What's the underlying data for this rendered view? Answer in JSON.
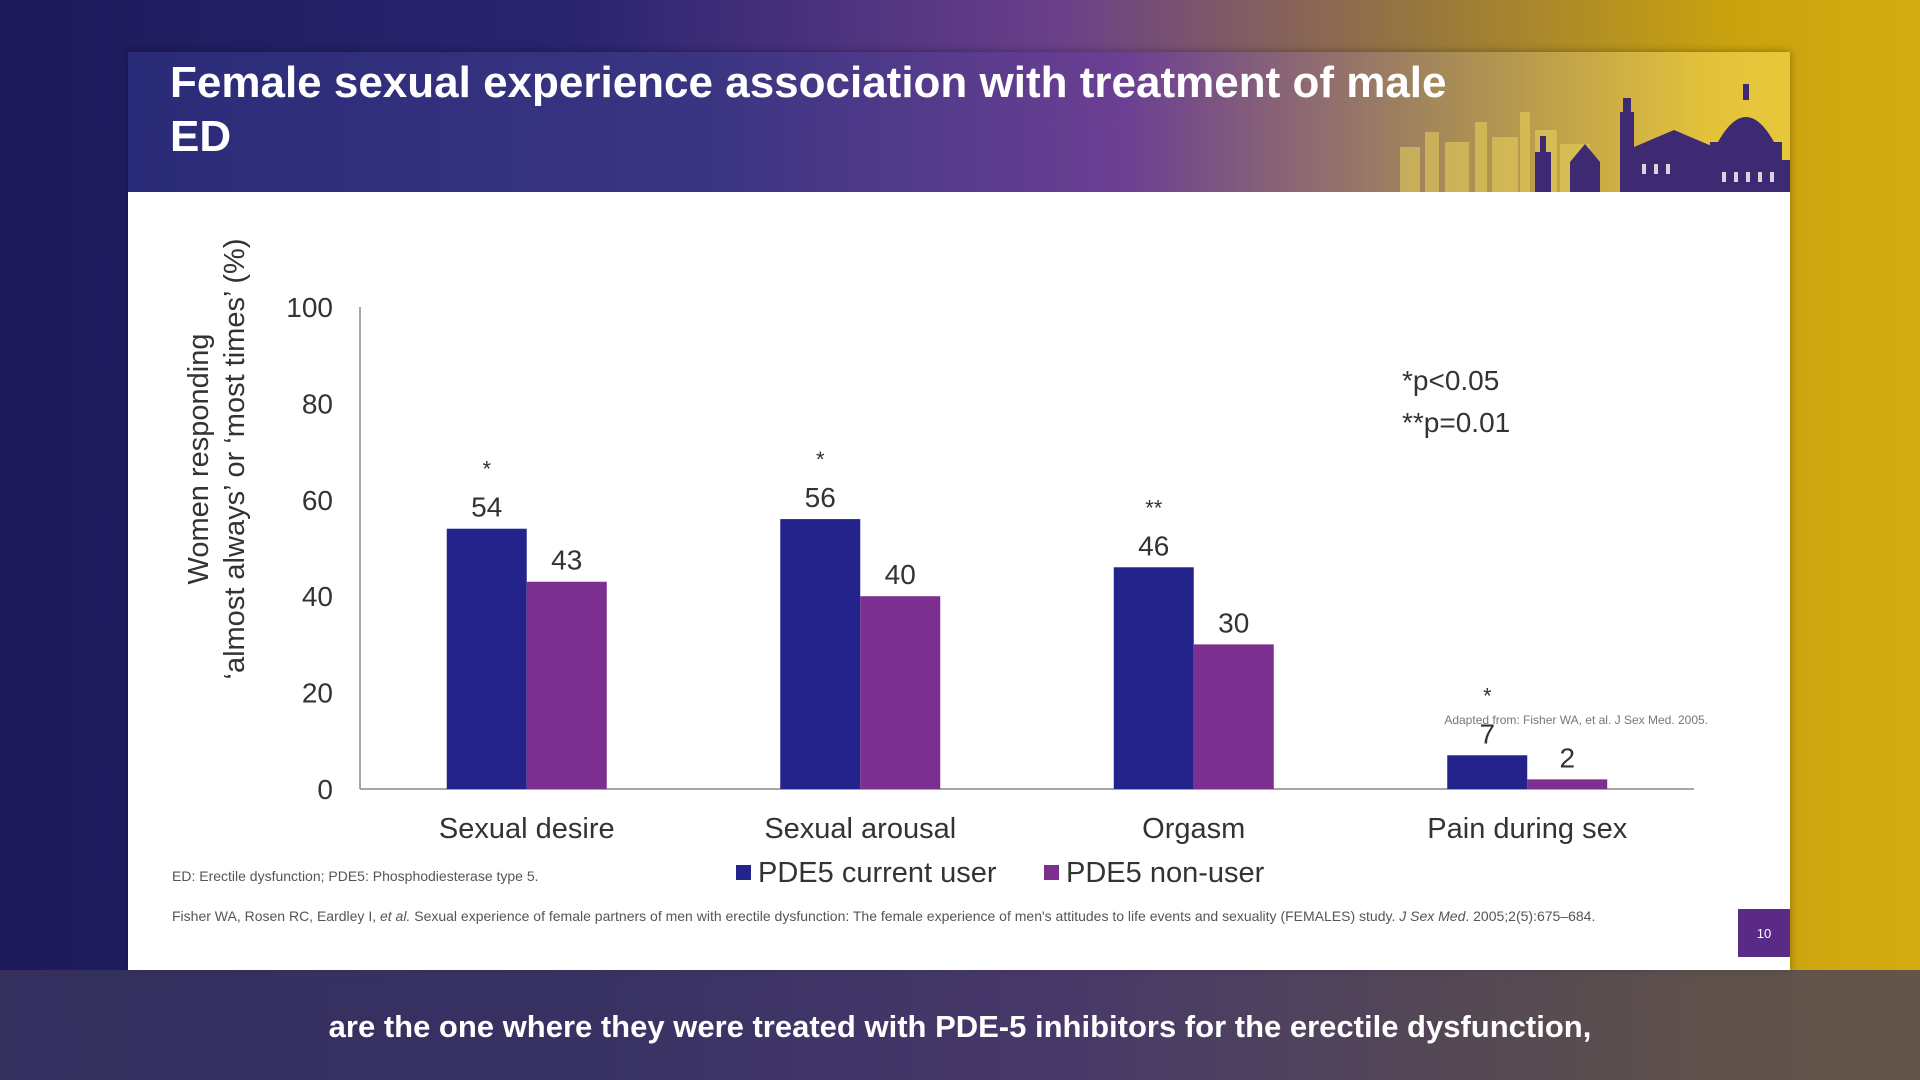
{
  "slide": {
    "title": "Female sexual experience association with treatment of male ED",
    "abbreviations": "ED: Erectile dysfunction; PDE5: Phosphodiesterase type 5.",
    "reference_pre": "Fisher WA, Rosen RC, Eardley I, ",
    "reference_etal": "et al.",
    "reference_mid": " Sexual experience of female partners of men with erectile dysfunction: The female experience of men's attitudes to life events and sexuality (FEMALES) study. ",
    "reference_journal": "J Sex Med",
    "reference_post": ". 2005;2(5):675–684.",
    "page_number": "10"
  },
  "caption": "are the one where they were treated with PDE-5 inhibitors for the erectile dysfunction,",
  "chart_data": {
    "type": "bar",
    "title": "",
    "ylabel_line1": "Women responding",
    "ylabel_line2": "‘almost always’ or ‘most times’ (%)",
    "xlabel": "",
    "ylim": [
      0,
      100
    ],
    "yticks": [
      0,
      20,
      40,
      60,
      80,
      100
    ],
    "categories": [
      "Sexual desire",
      "Sexual arousal",
      "Orgasm",
      "Pain during sex"
    ],
    "series": [
      {
        "name": "PDE5 current user",
        "color": "#23238b",
        "values": [
          54,
          56,
          46,
          7
        ]
      },
      {
        "name": "PDE5 non-user",
        "color": "#7b2f8e",
        "values": [
          43,
          40,
          30,
          2
        ]
      }
    ],
    "significance": [
      "*",
      "*",
      "**",
      "*"
    ],
    "significance_legend": [
      "*p<0.05",
      "**p=0.01"
    ],
    "source_note": "Adapted from: Fisher WA, et al. J Sex Med. 2005.",
    "legend_position": "bottom",
    "grid": false
  }
}
